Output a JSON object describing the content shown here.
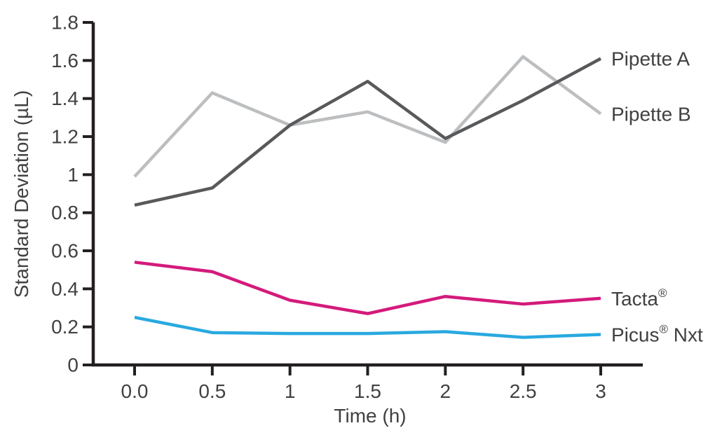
{
  "figure": {
    "background": "#FFFFFF"
  },
  "chart_data": {
    "type": "line",
    "title": "",
    "xlabel": "Time (h)",
    "ylabel": "Standard Deviation (µL)",
    "x_values": [
      0,
      0.5,
      1,
      1.5,
      2,
      2.5,
      3
    ],
    "x_tick_labels": [
      "0.0",
      "0.5",
      "1",
      "1.5",
      "2",
      "2.5",
      "3"
    ],
    "y_ticks": [
      0,
      0.2,
      0.4,
      0.6,
      0.8,
      1,
      1.2,
      1.4,
      1.6,
      1.8
    ],
    "y_tick_labels": [
      "0",
      "0.2",
      "0.4",
      "0.6",
      "0.8",
      "1",
      "1.2",
      "1.4",
      "1.6",
      "1.8"
    ],
    "ylim": [
      0,
      1.8
    ],
    "xlim": [
      -0.27,
      3.27
    ],
    "grid": false,
    "legend_position": "line-end-labels-right",
    "axis_color": "#231F20",
    "text_color": "#414042",
    "series": [
      {
        "name": "Pipette A",
        "color": "#58595B",
        "values": [
          0.84,
          0.93,
          1.26,
          1.49,
          1.19,
          1.39,
          1.61
        ]
      },
      {
        "name": "Pipette B",
        "color": "#BCBEC0",
        "values": [
          0.99,
          1.43,
          1.26,
          1.33,
          1.17,
          1.62,
          1.32
        ]
      },
      {
        "name": "Tacta®",
        "color": "#D41A7B",
        "values": [
          0.54,
          0.49,
          0.34,
          0.27,
          0.36,
          0.32,
          0.35
        ]
      },
      {
        "name": "Picus® Nxt",
        "color": "#29A9E0",
        "values": [
          0.25,
          0.17,
          0.165,
          0.165,
          0.175,
          0.145,
          0.16
        ]
      }
    ]
  }
}
